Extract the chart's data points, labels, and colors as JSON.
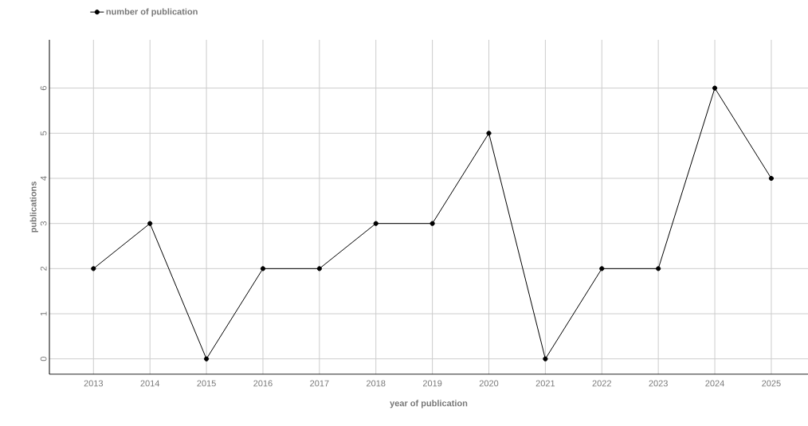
{
  "chart_data": {
    "type": "line",
    "xlabel": "year of publication",
    "ylabel": "publications",
    "x": [
      2013,
      2014,
      2015,
      2016,
      2017,
      2018,
      2019,
      2020,
      2021,
      2022,
      2023,
      2024,
      2025
    ],
    "series": [
      {
        "name": "number of publication",
        "color": "#000000",
        "values": [
          2,
          3,
          0,
          2,
          2,
          3,
          3,
          5,
          0,
          2,
          2,
          6,
          4
        ]
      }
    ],
    "xlim": [
      2012.22,
      2025.65
    ],
    "ylim": [
      -0.34,
      7.07
    ],
    "xticks": [
      2013,
      2014,
      2015,
      2016,
      2017,
      2018,
      2019,
      2020,
      2021,
      2022,
      2023,
      2024,
      2025
    ],
    "yticks": [
      0,
      1,
      2,
      3,
      4,
      5,
      6
    ],
    "grid": true,
    "legend": "top left",
    "marker": "circle",
    "line_style": "solid"
  }
}
